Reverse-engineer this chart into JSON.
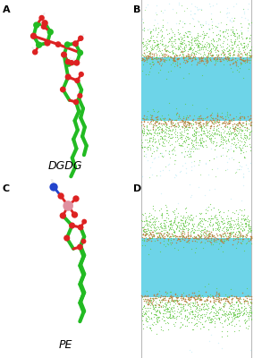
{
  "panel_labels": [
    "A",
    "B",
    "C",
    "D"
  ],
  "label_fontsize": 8,
  "label_weight": "bold",
  "mol_label_DGDG": "DGDG",
  "mol_label_PE": "PE",
  "mol_label_fontsize": 9,
  "bg_color": "#ffffff",
  "water_color": "#6dd4e8",
  "lipid_tail_color": "#3cb34a",
  "lipid_head_color": "#b88040",
  "scatter_green": "#5ec840",
  "scatter_blue": "#b0e8f4",
  "vertical_line_color": "#bbbbbb",
  "green": "#22bb22",
  "red": "#dd2222",
  "white_atom": "#eeeeee",
  "pink": "#e090a0",
  "blue_n": "#2244cc"
}
